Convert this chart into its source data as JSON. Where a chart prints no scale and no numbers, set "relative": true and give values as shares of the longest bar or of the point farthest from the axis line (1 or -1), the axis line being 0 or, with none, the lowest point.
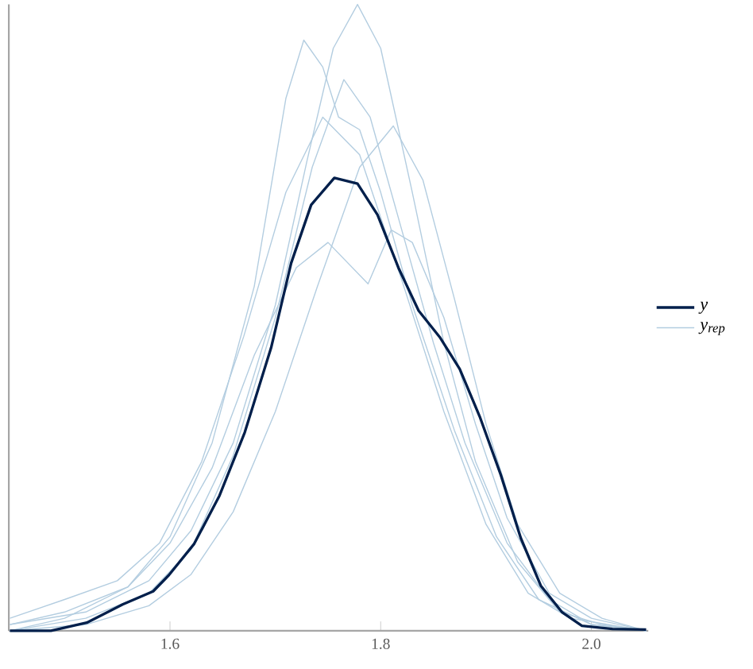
{
  "chart_data": {
    "type": "line",
    "relative": true,
    "xlim": [
      1.447,
      2.054
    ],
    "xticks": [
      {
        "value": 1.6,
        "label": "1.6"
      },
      {
        "value": 1.8,
        "label": "1.8"
      },
      {
        "value": 2.0,
        "label": "2.0"
      }
    ],
    "legend": "right",
    "series": [
      {
        "name": "y",
        "color": "#011f4b",
        "x": [
          1.448,
          1.487,
          1.521,
          1.555,
          1.584,
          1.599,
          1.623,
          1.647,
          1.671,
          1.696,
          1.715,
          1.734,
          1.756,
          1.778,
          1.797,
          1.817,
          1.836,
          1.856,
          1.875,
          1.894,
          1.914,
          1.933,
          1.952,
          1.972,
          1.991,
          2.02,
          2.052
        ],
        "values": [
          0,
          0,
          0.013,
          0.042,
          0.063,
          0.089,
          0.139,
          0.216,
          0.317,
          0.452,
          0.587,
          0.68,
          0.723,
          0.714,
          0.664,
          0.579,
          0.511,
          0.469,
          0.418,
          0.342,
          0.249,
          0.148,
          0.072,
          0.03,
          0.008,
          0.003,
          0.002
        ]
      },
      {
        "name": "y$_{rep}$",
        "color": "#b3cde0",
        "x": [
          1.448,
          1.52,
          1.58,
          1.62,
          1.66,
          1.7,
          1.73,
          1.755,
          1.778,
          1.8,
          1.83,
          1.86,
          1.89,
          1.93,
          1.97,
          2.01,
          2.052
        ],
        "values": [
          0.01,
          0.03,
          0.08,
          0.16,
          0.3,
          0.52,
          0.75,
          0.93,
          1.0,
          0.93,
          0.7,
          0.46,
          0.27,
          0.11,
          0.03,
          0.01,
          0
        ]
      },
      {
        "color": "#b3cde0",
        "x": [
          1.448,
          1.5,
          1.56,
          1.6,
          1.64,
          1.68,
          1.71,
          1.727,
          1.745,
          1.76,
          1.78,
          1.8,
          1.83,
          1.87,
          1.91,
          1.95,
          2.0,
          2.052
        ],
        "values": [
          0,
          0.02,
          0.07,
          0.15,
          0.3,
          0.55,
          0.85,
          0.943,
          0.9,
          0.82,
          0.8,
          0.7,
          0.52,
          0.32,
          0.15,
          0.05,
          0.01,
          0
        ]
      },
      {
        "color": "#b3cde0",
        "x": [
          1.448,
          1.5,
          1.56,
          1.6,
          1.64,
          1.68,
          1.72,
          1.75,
          1.788,
          1.81,
          1.83,
          1.86,
          1.89,
          1.92,
          1.96,
          2.0,
          2.052
        ],
        "values": [
          0.01,
          0.03,
          0.07,
          0.14,
          0.26,
          0.44,
          0.58,
          0.62,
          0.554,
          0.64,
          0.62,
          0.5,
          0.33,
          0.18,
          0.06,
          0.02,
          0
        ]
      },
      {
        "color": "#b3cde0",
        "x": [
          1.448,
          1.52,
          1.58,
          1.62,
          1.66,
          1.7,
          1.74,
          1.78,
          1.812,
          1.84,
          1.87,
          1.9,
          1.93,
          1.97,
          2.01,
          2.052
        ],
        "values": [
          0,
          0.01,
          0.04,
          0.09,
          0.19,
          0.35,
          0.55,
          0.74,
          0.806,
          0.72,
          0.53,
          0.33,
          0.17,
          0.06,
          0.02,
          0
        ]
      },
      {
        "color": "#b3cde0",
        "x": [
          1.448,
          1.5,
          1.55,
          1.59,
          1.63,
          1.67,
          1.71,
          1.745,
          1.78,
          1.82,
          1.86,
          1.9,
          1.94,
          1.98,
          2.052
        ],
        "values": [
          0.02,
          0.05,
          0.08,
          0.14,
          0.27,
          0.47,
          0.7,
          0.82,
          0.76,
          0.56,
          0.35,
          0.17,
          0.06,
          0.02,
          0
        ]
      },
      {
        "color": "#b3cde0",
        "x": [
          1.448,
          1.52,
          1.58,
          1.62,
          1.66,
          1.7,
          1.735,
          1.765,
          1.79,
          1.82,
          1.85,
          1.88,
          1.92,
          1.96,
          2.0,
          2.052
        ],
        "values": [
          0,
          0.02,
          0.06,
          0.13,
          0.28,
          0.5,
          0.74,
          0.88,
          0.82,
          0.64,
          0.46,
          0.3,
          0.14,
          0.05,
          0.01,
          0
        ]
      }
    ]
  }
}
